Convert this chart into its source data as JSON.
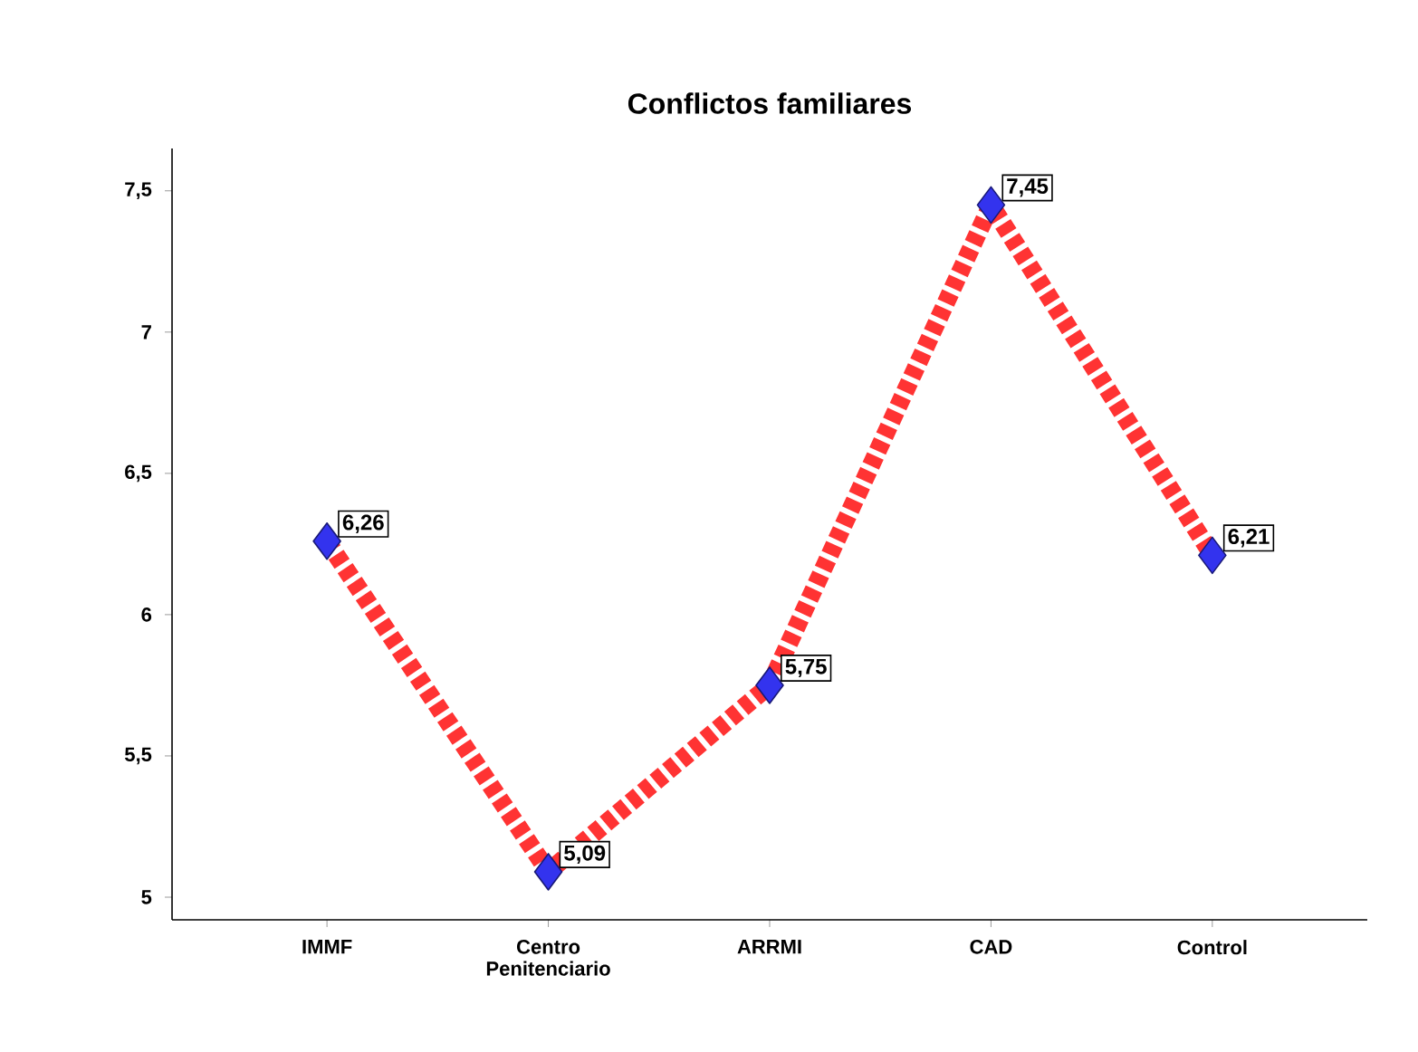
{
  "chart_data": {
    "type": "line",
    "title": "Conflictos familiares",
    "categories": [
      "IMMF",
      "Centro Penitenciario",
      "ARRMI",
      "CAD",
      "Control"
    ],
    "series": [
      {
        "color": "#ff3333",
        "colors": [
          "#3333ee",
          "#3333ee",
          "#3333ee",
          "#3333ee",
          "#3333ee"
        ],
        "values": [
          6.26,
          5.09,
          5.75,
          7.45,
          6.21
        ],
        "value_labels": [
          "6,26",
          "5,09",
          "5,75",
          "7,45",
          "6,21"
        ]
      }
    ],
    "marker": "diamond",
    "line_style": "dashed",
    "ylim": [
      4.92,
      7.65
    ],
    "yticks": [
      {
        "value": 5,
        "label": "5"
      },
      {
        "value": 5.5,
        "label": "5,5"
      },
      {
        "value": 6,
        "label": "6"
      },
      {
        "value": 6.5,
        "label": "6,5"
      },
      {
        "value": 7,
        "label": "7"
      },
      {
        "value": 7.5,
        "label": "7,5"
      }
    ],
    "grid": false
  }
}
